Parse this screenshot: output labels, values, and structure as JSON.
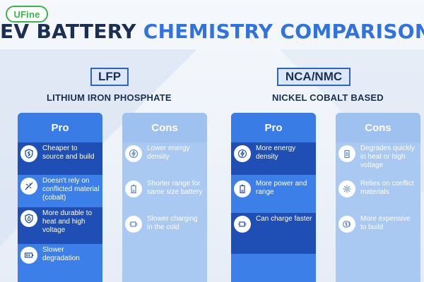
{
  "brand": {
    "logo_text": "UFine"
  },
  "title": {
    "part1": "EV BATTERY ",
    "part2": "CHEMISTRY COMPARISON"
  },
  "chemistries": [
    {
      "tag": "LFP",
      "name": "LITHIUM IRON PHOSPHATE",
      "pro_label": "Pro",
      "con_label": "Cons",
      "pros": [
        {
          "icon": "dollar-shield-icon",
          "text": "Cheaper to source and build"
        },
        {
          "icon": "no-conflict-icon",
          "text": "Doesn't rely on conflicted material (cobalt)"
        },
        {
          "icon": "flame-shield-icon",
          "text": "More durable to heat and high voltage"
        },
        {
          "icon": "battery-level-icon",
          "text": "Slower degradation"
        }
      ],
      "cons": [
        {
          "icon": "lightning-icon",
          "text": "Lower energy density"
        },
        {
          "icon": "battery-icon",
          "text": "Shorter range for same size battery"
        },
        {
          "icon": "charger-plug-icon",
          "text": "Slower charging in the cold"
        }
      ]
    },
    {
      "tag": "NCA/NMC",
      "name": "NICKEL COBALT BASED",
      "pro_label": "Pro",
      "con_label": "Cons",
      "pros": [
        {
          "icon": "lightning-icon",
          "text": "More energy density"
        },
        {
          "icon": "battery-icon",
          "text": "More power and range"
        },
        {
          "icon": "charger-plug-icon",
          "text": "Can charge faster"
        }
      ],
      "cons": [
        {
          "icon": "flame-battery-icon",
          "text": "Degrades quickly in heat or high voltage"
        },
        {
          "icon": "conflict-materials-icon",
          "text": "Relies on conflict materials"
        },
        {
          "icon": "coins-icon",
          "text": "More expensive to build"
        }
      ]
    }
  ],
  "colors": {
    "title_dark": "#1b2f52",
    "title_accent": "#2f72e0",
    "pro_bg": "#3c7fe8",
    "pro_alt_bg": "#1f4fb4",
    "cons_bg": "#a9c8f2",
    "brand_green": "#39b44a"
  }
}
